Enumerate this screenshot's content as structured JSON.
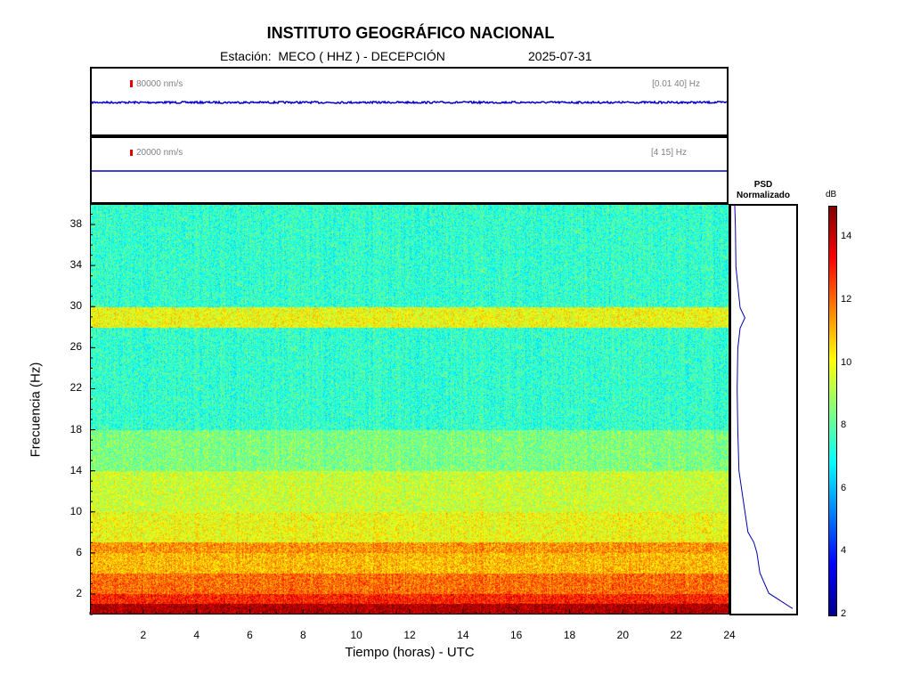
{
  "header": {
    "title": "INSTITUTO GEOGRÁFICO NACIONAL",
    "station_label": "Estación:",
    "station": "MECO ( HHZ ) - DECEPCIÓN",
    "date": "2025-07-31"
  },
  "traces": [
    {
      "scale": "80000 nm/s",
      "band": "[0.01 40] Hz"
    },
    {
      "scale": "20000 nm/s",
      "band": "[4 15] Hz"
    }
  ],
  "psd": {
    "title_line1": "PSD",
    "title_line2": "Normalizado"
  },
  "colorbar": {
    "unit": "dB",
    "min": 2,
    "max": 15,
    "ticks": [
      "14",
      "12",
      "10",
      "8",
      "6",
      "4",
      "2"
    ]
  },
  "colors": {
    "trace": "#0000cc",
    "scale_bar": "#e00000"
  },
  "chart_data": {
    "type": "heatmap",
    "title": "INSTITUTO GEOGRÁFICO NACIONAL",
    "xlabel": "Tiempo (horas) - UTC",
    "ylabel": "Frecuencia  (Hz)",
    "xlim": [
      0,
      24
    ],
    "ylim": [
      0,
      40
    ],
    "x_ticks": [
      "2",
      "4",
      "6",
      "8",
      "10",
      "12",
      "14",
      "16",
      "18",
      "20",
      "22",
      "24"
    ],
    "y_ticks": [
      "38",
      "34",
      "30",
      "26",
      "22",
      "18",
      "14",
      "10",
      "6",
      "2"
    ],
    "colormap": "jet",
    "color_range_db": [
      2,
      15
    ],
    "bands": [
      {
        "fmin": 0,
        "fmax": 1,
        "db": 14.5
      },
      {
        "fmin": 1,
        "fmax": 2,
        "db": 13
      },
      {
        "fmin": 2,
        "fmax": 4,
        "db": 12
      },
      {
        "fmin": 4,
        "fmax": 6,
        "db": 11
      },
      {
        "fmin": 6,
        "fmax": 7,
        "db": 11.5
      },
      {
        "fmin": 7,
        "fmax": 10,
        "db": 10
      },
      {
        "fmin": 10,
        "fmax": 14,
        "db": 9.5
      },
      {
        "fmin": 14,
        "fmax": 18,
        "db": 8.5
      },
      {
        "fmin": 18,
        "fmax": 28,
        "db": 7.5
      },
      {
        "fmin": 28,
        "fmax": 30,
        "db": 10
      },
      {
        "fmin": 30,
        "fmax": 40,
        "db": 7.5
      }
    ],
    "psd_normalized": [
      {
        "f": 0.5,
        "v": 1.0
      },
      {
        "f": 2,
        "v": 0.6
      },
      {
        "f": 4,
        "v": 0.45
      },
      {
        "f": 6,
        "v": 0.4
      },
      {
        "f": 7,
        "v": 0.35
      },
      {
        "f": 8,
        "v": 0.25
      },
      {
        "f": 10,
        "v": 0.2
      },
      {
        "f": 14,
        "v": 0.1
      },
      {
        "f": 18,
        "v": 0.08
      },
      {
        "f": 22,
        "v": 0.07
      },
      {
        "f": 26,
        "v": 0.08
      },
      {
        "f": 28,
        "v": 0.12
      },
      {
        "f": 29,
        "v": 0.2
      },
      {
        "f": 30,
        "v": 0.12
      },
      {
        "f": 34,
        "v": 0.05
      },
      {
        "f": 38,
        "v": 0.04
      },
      {
        "f": 40,
        "v": 0.03
      }
    ]
  }
}
